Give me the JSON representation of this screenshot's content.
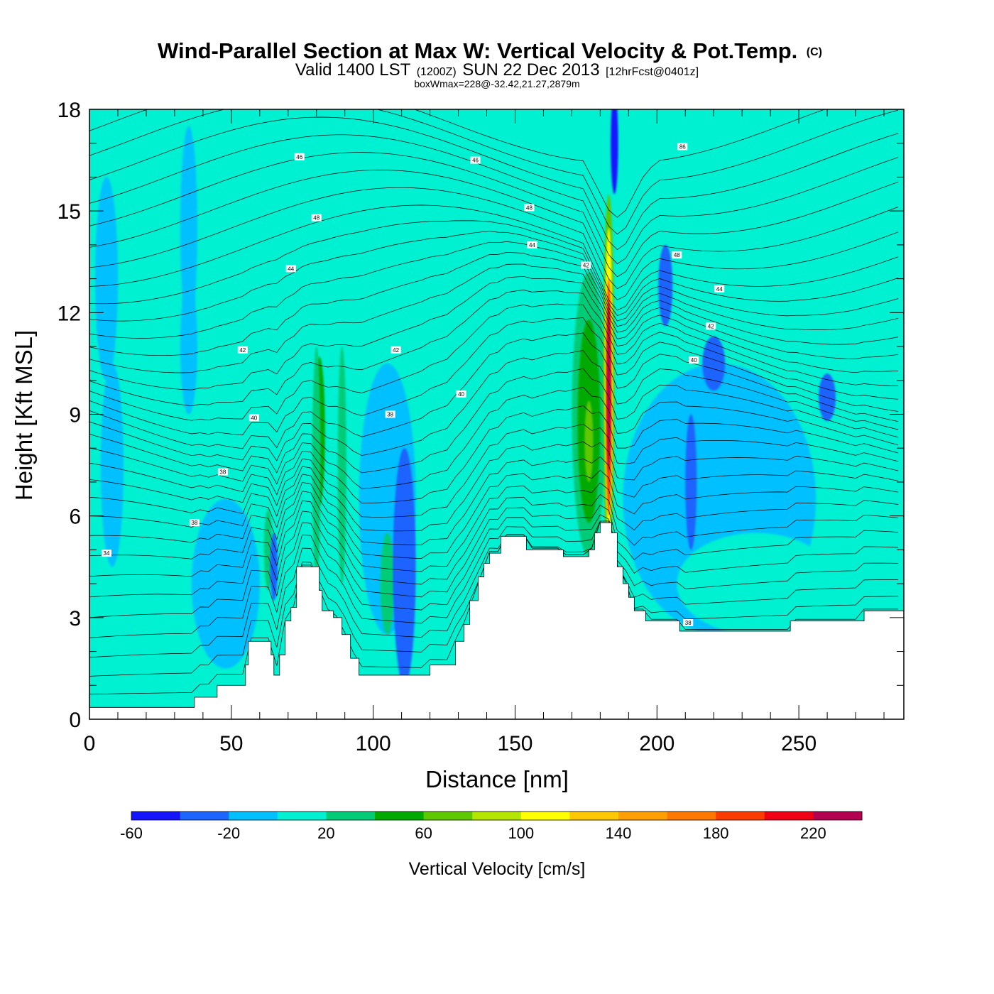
{
  "header": {
    "title_main": "Wind-Parallel Section at Max W: Vertical Velocity & Pot.Temp.",
    "title_copyright": "(C)",
    "valid_prefix": "Valid 1400 LST",
    "valid_utc": "(1200Z)",
    "valid_date": "SUN 22 Dec 2013",
    "forecast_info": "[12hrFcst@0401z]",
    "box_info": "boxWmax=228@-32.42,21.27,2879m"
  },
  "chart_data": {
    "type": "heatmap",
    "xlabel": "Distance [nm]",
    "ylabel": "Height [Kft MSL]",
    "xlim": [
      0,
      287
    ],
    "ylim": [
      0,
      18
    ],
    "x_ticks": [
      0,
      50,
      100,
      150,
      200,
      250
    ],
    "y_ticks": [
      0,
      3,
      6,
      9,
      12,
      15,
      18
    ],
    "terrain": [
      [
        0,
        0.35
      ],
      [
        36,
        0.35
      ],
      [
        37,
        0.65
      ],
      [
        44,
        0.65
      ],
      [
        45,
        1.0
      ],
      [
        54,
        1.0
      ],
      [
        55,
        1.6
      ],
      [
        56,
        2.3
      ],
      [
        62,
        2.3
      ],
      [
        64,
        1.9
      ],
      [
        65,
        1.3
      ],
      [
        67,
        1.9
      ],
      [
        69,
        2.9
      ],
      [
        71,
        3.3
      ],
      [
        73,
        4.5
      ],
      [
        79,
        4.5
      ],
      [
        81,
        3.8
      ],
      [
        82,
        3.2
      ],
      [
        86,
        3.0
      ],
      [
        89,
        2.5
      ],
      [
        92,
        1.8
      ],
      [
        95,
        1.3
      ],
      [
        118,
        1.3
      ],
      [
        120,
        1.6
      ],
      [
        127,
        1.6
      ],
      [
        129,
        2.3
      ],
      [
        132,
        2.8
      ],
      [
        134,
        3.5
      ],
      [
        137,
        4.2
      ],
      [
        139,
        4.6
      ],
      [
        141,
        4.9
      ],
      [
        145,
        5.4
      ],
      [
        153,
        5.4
      ],
      [
        154,
        5.0
      ],
      [
        166,
        5.0
      ],
      [
        167,
        4.8
      ],
      [
        174,
        4.8
      ],
      [
        176,
        5.0
      ],
      [
        178,
        5.5
      ],
      [
        180,
        5.8
      ],
      [
        183,
        5.8
      ],
      [
        184,
        5.5
      ],
      [
        186,
        4.5
      ],
      [
        188,
        4.0
      ],
      [
        190,
        3.6
      ],
      [
        192,
        3.2
      ],
      [
        196,
        2.9
      ],
      [
        207,
        2.9
      ],
      [
        208,
        2.6
      ],
      [
        246,
        2.6
      ],
      [
        247,
        2.9
      ],
      [
        272,
        2.9
      ],
      [
        273,
        3.2
      ],
      [
        287,
        3.2
      ]
    ],
    "features": [
      {
        "cx": 6,
        "cy": 13,
        "rx": 4,
        "ry": 3,
        "value": -10
      },
      {
        "cx": 35,
        "cy": 14.5,
        "rx": 3,
        "ry": 3,
        "value": -10
      },
      {
        "cx": 35,
        "cy": 11,
        "rx": 3,
        "ry": 2,
        "value": -10
      },
      {
        "cx": 8,
        "cy": 7.5,
        "rx": 4,
        "ry": 3,
        "value": -10
      },
      {
        "cx": 85,
        "cy": 16,
        "rx": 26,
        "ry": 2.2,
        "value": 10
      },
      {
        "cx": 165,
        "cy": 16,
        "rx": 22,
        "ry": 2.2,
        "value": 10
      },
      {
        "cx": 235,
        "cy": 12.5,
        "rx": 45,
        "ry": 3.5,
        "value": 10
      },
      {
        "cx": 210,
        "cy": 16.5,
        "rx": 25,
        "ry": 2,
        "value": 10
      },
      {
        "cx": 66,
        "cy": 11,
        "rx": 5,
        "ry": 3,
        "value": 10
      },
      {
        "cx": 150,
        "cy": 13.5,
        "rx": 10,
        "ry": 3,
        "value": 10
      },
      {
        "cx": 105,
        "cy": 6.5,
        "rx": 10,
        "ry": 4,
        "value": -10
      },
      {
        "cx": 222,
        "cy": 6.5,
        "rx": 34,
        "ry": 4,
        "value": -10
      },
      {
        "cx": 235,
        "cy": 4,
        "rx": 28,
        "ry": 1.5,
        "value": 10
      },
      {
        "cx": 48,
        "cy": 4,
        "rx": 12,
        "ry": 2.5,
        "value": -10
      },
      {
        "cx": 155,
        "cy": 8.2,
        "rx": 17,
        "ry": 3.5,
        "value": 10
      },
      {
        "cx": 136,
        "cy": 6,
        "rx": 10,
        "ry": 3,
        "value": 10
      },
      {
        "cx": 81,
        "cy": 8.5,
        "rx": 2.0,
        "ry": 2.2,
        "value": 50
      },
      {
        "cx": 80,
        "cy": 7.5,
        "rx": 1.4,
        "ry": 3.5,
        "value": 30
      },
      {
        "cx": 89,
        "cy": 7.5,
        "rx": 1.5,
        "ry": 3.5,
        "value": 30
      },
      {
        "cx": 63,
        "cy": 5,
        "rx": 1.5,
        "ry": 1.2,
        "value": 30
      },
      {
        "cx": 105,
        "cy": 4,
        "rx": 2.5,
        "ry": 1.5,
        "value": 30
      },
      {
        "cx": 176,
        "cy": 9,
        "rx": 6,
        "ry": 4.2,
        "value": 30
      },
      {
        "cx": 176,
        "cy": 8.8,
        "rx": 4,
        "ry": 3,
        "value": 50
      },
      {
        "cx": 176,
        "cy": 8.2,
        "rx": 1.5,
        "ry": 1.2,
        "value": 70
      },
      {
        "cx": 183,
        "cy": 10,
        "rx": 2.0,
        "ry": 5.5,
        "value": 70
      },
      {
        "cx": 183,
        "cy": 10,
        "rx": 1.4,
        "ry": 4.5,
        "value": 110
      },
      {
        "cx": 183,
        "cy": 9.5,
        "rx": 1.0,
        "ry": 3.5,
        "value": 190
      },
      {
        "cx": 183,
        "cy": 9.8,
        "rx": 0.7,
        "ry": 2.5,
        "value": 230
      },
      {
        "cx": 110,
        "cy": 4.5,
        "rx": 2.5,
        "ry": 2.5,
        "value": -50
      },
      {
        "cx": 111,
        "cy": 4.5,
        "rx": 4,
        "ry": 3.5,
        "value": -30
      },
      {
        "cx": 65,
        "cy": 4.5,
        "rx": 1.3,
        "ry": 1,
        "value": -30
      },
      {
        "cx": 185,
        "cy": 17,
        "rx": 1.3,
        "ry": 1.5,
        "value": -50
      },
      {
        "cx": 203,
        "cy": 12.8,
        "rx": 2.5,
        "ry": 1.2,
        "value": -30
      },
      {
        "cx": 220,
        "cy": 10.5,
        "rx": 4,
        "ry": 0.8,
        "value": -30
      },
      {
        "cx": 212,
        "cy": 7,
        "rx": 2,
        "ry": 2,
        "value": -30
      },
      {
        "cx": 260,
        "cy": 9.5,
        "rx": 3,
        "ry": 0.7,
        "value": -30
      }
    ],
    "contour_labels": [
      {
        "x": 74,
        "y": 16.6,
        "text": "46"
      },
      {
        "x": 136,
        "y": 16.5,
        "text": "46"
      },
      {
        "x": 209,
        "y": 16.9,
        "text": "86"
      },
      {
        "x": 155,
        "y": 15.1,
        "text": "48"
      },
      {
        "x": 80,
        "y": 14.8,
        "text": "48"
      },
      {
        "x": 156,
        "y": 14.0,
        "text": "44"
      },
      {
        "x": 71,
        "y": 13.3,
        "text": "44"
      },
      {
        "x": 175,
        "y": 13.4,
        "text": "42"
      },
      {
        "x": 207,
        "y": 13.7,
        "text": "48"
      },
      {
        "x": 222,
        "y": 12.7,
        "text": "44"
      },
      {
        "x": 219,
        "y": 11.6,
        "text": "42"
      },
      {
        "x": 54,
        "y": 10.9,
        "text": "42"
      },
      {
        "x": 108,
        "y": 10.9,
        "text": "42"
      },
      {
        "x": 213,
        "y": 10.6,
        "text": "40"
      },
      {
        "x": 131,
        "y": 9.6,
        "text": "40"
      },
      {
        "x": 58,
        "y": 8.9,
        "text": "40"
      },
      {
        "x": 106,
        "y": 9.0,
        "text": "38"
      },
      {
        "x": 47,
        "y": 7.3,
        "text": "38"
      },
      {
        "x": 37,
        "y": 5.8,
        "text": "38"
      },
      {
        "x": 6,
        "y": 4.9,
        "text": "34"
      },
      {
        "x": 211,
        "y": 2.85,
        "text": "38"
      }
    ],
    "legend": {
      "title": "Vertical Velocity [cm/s]",
      "bins": [
        -60,
        -40,
        -20,
        0,
        20,
        40,
        60,
        80,
        100,
        120,
        140,
        160,
        180,
        200,
        220,
        240
      ],
      "labels": [
        "-60",
        "-20",
        "20",
        "60",
        "100",
        "140",
        "180",
        "220"
      ],
      "colors": [
        "#1414ff",
        "#1e64ff",
        "#00c0ff",
        "#00f0d2",
        "#00cc78",
        "#00aa00",
        "#60c800",
        "#b4e600",
        "#ffff00",
        "#ffc800",
        "#ffa000",
        "#ff7800",
        "#ff3c00",
        "#f00014",
        "#b40050"
      ]
    }
  }
}
